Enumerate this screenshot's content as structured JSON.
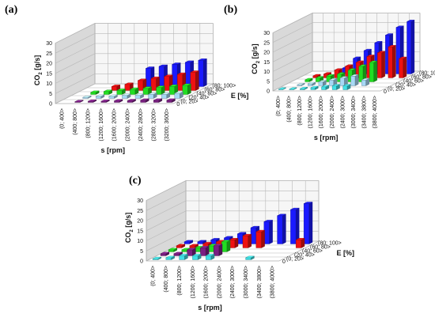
{
  "colors": {
    "e_0_20": "#3fe0e6",
    "e_20_40": "#a6d8f5",
    "e_40_60": "#7a1f82",
    "e_60_80": "#22dd22",
    "e_80_100_red": "#ee1111",
    "e_80_100_blue": "#1a1aff"
  },
  "chart_data": [
    {
      "panel": "(a)",
      "type": "bar",
      "ylabel": "CO2 [g/s]",
      "ylabel_main": "CO",
      "ylabel_sub": "2",
      "ylabel_unit": " [g/s]",
      "xlabel": "s [rpm]",
      "zlabel": "E [%]",
      "yticks": [
        "0",
        "5",
        "10",
        "15",
        "20",
        "25",
        "30"
      ],
      "ylim": [
        0,
        30
      ],
      "categories": [
        "(0; 400>",
        "(400; 800>",
        "(800; 1200>",
        "(1200; 1600>",
        "(1600; 2000>",
        "(2000; 2400>",
        "(2400; 2800>",
        "(2800; 3200>",
        "(3200; 3600>"
      ],
      "series_order": [
        "(0; 20>",
        "(20; 40>",
        "(40; 60>",
        "(60; 80>",
        "(80; 100>"
      ],
      "series": [
        {
          "name": "(80; 100>",
          "color_key": "e_80_100_blue",
          "values": [
            null,
            null,
            null,
            null,
            9,
            10,
            11,
            12,
            13
          ]
        },
        {
          "name": "(60; 80>",
          "color_key": "e_80_100_red",
          "values": [
            null,
            null,
            2,
            3,
            5,
            6,
            7,
            8,
            9
          ]
        },
        {
          "name": "(40; 60>",
          "color_key": "e_60_80",
          "values": [
            null,
            1,
            1.5,
            2,
            2.5,
            3,
            3.5,
            4,
            4.5
          ]
        },
        {
          "name": "(20; 40>",
          "color_key": "e_20_40",
          "values": [
            null,
            0.5,
            1,
            1,
            1.5,
            1.5,
            2,
            2,
            2.5
          ]
        },
        {
          "name": "(0; 20>",
          "color_key": "e_40_60",
          "values": [
            null,
            0.3,
            0.5,
            0.5,
            0.7,
            0.8,
            1,
            1,
            1
          ]
        }
      ]
    },
    {
      "panel": "(b)",
      "type": "bar",
      "ylabel": "CO2 [g/s]",
      "ylabel_main": "CO",
      "ylabel_sub": "2",
      "ylabel_unit": " [g/s]",
      "xlabel": "s [rpm]",
      "zlabel": "E [%]",
      "yticks": [
        "0",
        "5",
        "10",
        "15",
        "20",
        "25",
        "30"
      ],
      "ylim": [
        0,
        30
      ],
      "categories": [
        "(0; 400>",
        "(400; 800>",
        "(800; 1200>",
        "(1200; 1600>",
        "(1600; 2000>",
        "(2000; 2400>",
        "(2400; 3000>",
        "(3000; 3400>",
        "(3400; 3800>",
        "(3800; 4000>"
      ],
      "series_order": [
        "(0; 20>",
        "(20; 40>",
        "(40; 60>",
        "(60; 80>",
        "(80; 100>"
      ],
      "series": [
        {
          "name": "(80; 100>",
          "color_key": "e_80_100_blue",
          "values": [
            null,
            null,
            null,
            3,
            8,
            12,
            16,
            20,
            24,
            27
          ]
        },
        {
          "name": "(60; 80>",
          "color_key": "e_80_100_red",
          "values": [
            null,
            1,
            2,
            4,
            6,
            8,
            11,
            13,
            16,
            10
          ]
        },
        {
          "name": "(40; 60>",
          "color_key": "e_60_80",
          "values": [
            null,
            1,
            2,
            3,
            4,
            6,
            8,
            10,
            null,
            null
          ]
        },
        {
          "name": "(20; 40>",
          "color_key": "e_20_40",
          "values": [
            null,
            0.5,
            1,
            2,
            3,
            4,
            5,
            3,
            null,
            null
          ]
        },
        {
          "name": "(0; 20>",
          "color_key": "e_0_20",
          "values": [
            0.3,
            0.3,
            0.5,
            1,
            1.5,
            2,
            2,
            null,
            null,
            null
          ]
        }
      ]
    },
    {
      "panel": "(c)",
      "type": "bar",
      "ylabel": "CO2 [g/s]",
      "ylabel_main": "CO",
      "ylabel_sub": "2",
      "ylabel_unit": " [g/s]",
      "xlabel": "s [rpm]",
      "zlabel": "E [%]",
      "yticks": [
        "0",
        "5",
        "10",
        "15",
        "20",
        "25",
        "30"
      ],
      "ylim": [
        0,
        30
      ],
      "categories": [
        "(0; 400>",
        "(400; 800>",
        "(800; 1200>",
        "(1200; 1600>",
        "(1600; 2000>",
        "(2000; 2400>",
        "(2400; 3000>",
        "(3000; 3400>",
        "(3400; 3800>",
        "(3800; 4000>"
      ],
      "series_order": [
        "(0; 20>",
        "(20; 40>",
        "(40; 60>",
        "(60; 80>",
        "(80; 100>"
      ],
      "series": [
        {
          "name": "(80; 100>",
          "color_key": "e_80_100_blue",
          "values": [
            1,
            1,
            2,
            3,
            5,
            8,
            11,
            14,
            17,
            20
          ]
        },
        {
          "name": "(60; 80>",
          "color_key": "e_80_100_red",
          "values": [
            1,
            1,
            2,
            3,
            4,
            6,
            8,
            null,
            null,
            4
          ]
        },
        {
          "name": "(40; 60>",
          "color_key": "e_60_80",
          "values": [
            1,
            1,
            2,
            3,
            5,
            null,
            null,
            null,
            null,
            null
          ]
        },
        {
          "name": "(20; 40>",
          "color_key": "e_40_60",
          "values": [
            1,
            1,
            3,
            4,
            5,
            null,
            null,
            null,
            null,
            null
          ]
        },
        {
          "name": "(0; 20>",
          "color_key": "e_0_20",
          "values": [
            0.5,
            1,
            2,
            2,
            2,
            null,
            null,
            1,
            null,
            null
          ]
        }
      ]
    }
  ]
}
